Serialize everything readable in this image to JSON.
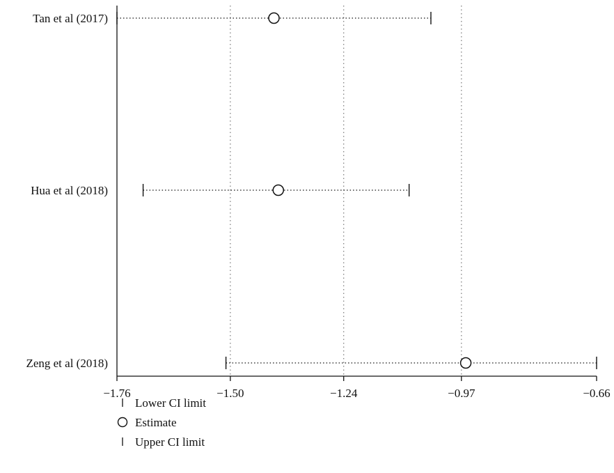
{
  "chart_data": {
    "type": "forest",
    "title": "",
    "xlabel": "",
    "ylabel": "",
    "xlim": [
      -1.76,
      -0.66
    ],
    "x_ticks": [
      -1.76,
      -1.5,
      -1.24,
      -0.97,
      -0.66
    ],
    "x_tick_labels": [
      "−1.76",
      "−1.50",
      "−1.24",
      "−0.97",
      "−0.66"
    ],
    "grid_vertical_at": [
      -1.5,
      -1.24,
      -0.97
    ],
    "grid": true,
    "studies": [
      {
        "label": "Tan et al (2017)",
        "lower": -1.76,
        "estimate": -1.4,
        "upper": -1.04
      },
      {
        "label": "Hua et al (2018)",
        "lower": -1.7,
        "estimate": -1.39,
        "upper": -1.09
      },
      {
        "label": "Zeng et al (2018)",
        "lower": -1.51,
        "estimate": -0.96,
        "upper": -0.66
      }
    ],
    "legend": {
      "position": "bottom-left",
      "entries": [
        {
          "label": "Lower CI limit",
          "marker": "tick"
        },
        {
          "label": "Estimate",
          "marker": "circle"
        },
        {
          "label": "Upper CI limit",
          "marker": "tick"
        }
      ]
    },
    "colors": {
      "ink": "#111111",
      "grid": "#777777",
      "background": "#ffffff"
    }
  }
}
